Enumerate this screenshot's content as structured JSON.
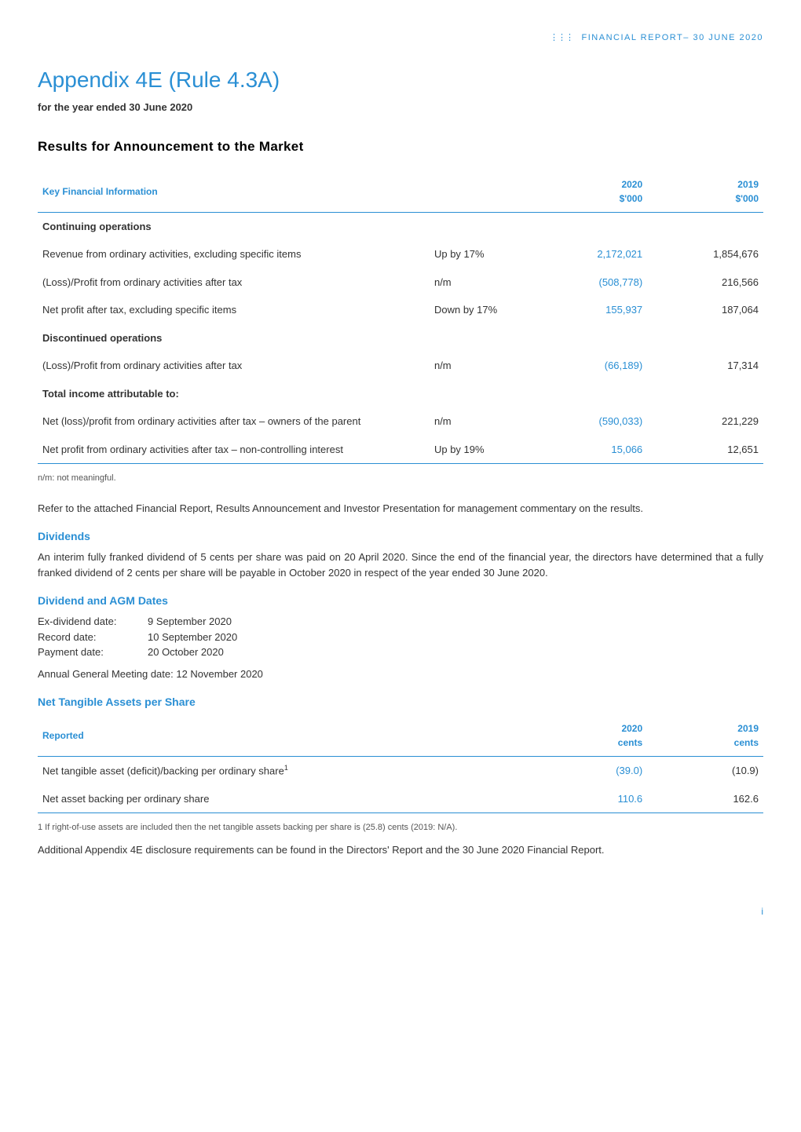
{
  "header": {
    "dots": "⋮⋮⋮",
    "label": "FINANCIAL REPORT– 30 JUNE 2020"
  },
  "title": "Appendix 4E (Rule 4.3A)",
  "subtitle": "for the year ended 30 June 2020",
  "section_results": "Results for Announcement to the Market",
  "kfi_table": {
    "header_label": "Key Financial Information",
    "year1": "2020",
    "year1_unit": "$'000",
    "year2": "2019",
    "year2_unit": "$'000",
    "rows": [
      {
        "label": "Continuing operations",
        "bold": true,
        "change": "",
        "v1": "",
        "v2": "",
        "top_border": true
      },
      {
        "label": "Revenue from ordinary activities, excluding specific items",
        "change": "Up by 17%",
        "v1": "2,172,021",
        "v2": "1,854,676"
      },
      {
        "label": "(Loss)/Profit from ordinary activities after tax",
        "change": "n/m",
        "v1": "(508,778)",
        "v2": "216,566"
      },
      {
        "label": "Net profit after tax, excluding specific items",
        "change": "Down by 17%",
        "v1": "155,937",
        "v2": "187,064"
      },
      {
        "label": "Discontinued operations",
        "bold": true,
        "change": "",
        "v1": "",
        "v2": ""
      },
      {
        "label": "(Loss)/Profit from ordinary activities after tax",
        "change": "n/m",
        "v1": "(66,189)",
        "v2": "17,314"
      },
      {
        "label": "Total income attributable to:",
        "bold": true,
        "change": "",
        "v1": "",
        "v2": ""
      },
      {
        "label": "Net (loss)/profit from ordinary activities after tax – owners of the parent",
        "change": "n/m",
        "v1": "(590,033)",
        "v2": "221,229"
      },
      {
        "label": "Net profit from ordinary activities after tax – non-controlling interest",
        "change": "Up by 19%",
        "v1": "15,066",
        "v2": "12,651",
        "bottom_border": true
      }
    ]
  },
  "nm_note": "n/m: not meaningful.",
  "refer_para": "Refer to the attached Financial Report, Results Announcement and Investor Presentation for management commentary on the results.",
  "dividends": {
    "title": "Dividends",
    "para": "An interim fully franked dividend of 5 cents per share was paid on 20 April 2020. Since the end of the financial year, the directors have determined that a fully franked dividend of 2 cents per share will be payable in October 2020 in respect of the year ended 30 June 2020."
  },
  "dates_section": {
    "title": "Dividend and AGM Dates",
    "items": [
      {
        "lbl": "Ex-dividend date:",
        "val": "9 September 2020"
      },
      {
        "lbl": "Record date:",
        "val": "10 September 2020"
      },
      {
        "lbl": "Payment date:",
        "val": "20 October 2020"
      }
    ],
    "agm": "Annual General Meeting date: 12 November 2020"
  },
  "nta_section": {
    "title": "Net Tangible Assets per Share",
    "header_label": "Reported",
    "year1": "2020",
    "year1_unit": "cents",
    "year2": "2019",
    "year2_unit": "cents",
    "rows": [
      {
        "label": "Net tangible asset (deficit)/backing per ordinary share",
        "sup": "1",
        "v1": "(39.0)",
        "v2": "(10.9)",
        "top_border": true
      },
      {
        "label": "Net asset backing per ordinary share",
        "v1": "110.6",
        "v2": "162.6",
        "bottom_border": true
      }
    ],
    "footnote": "1   If right-of-use assets are included then the net tangible assets backing per share is (25.8) cents (2019: N/A).",
    "closing": "Additional Appendix 4E disclosure requirements can be found in the Directors' Report and the 30 June 2020 Financial Report."
  },
  "page_num": "i"
}
